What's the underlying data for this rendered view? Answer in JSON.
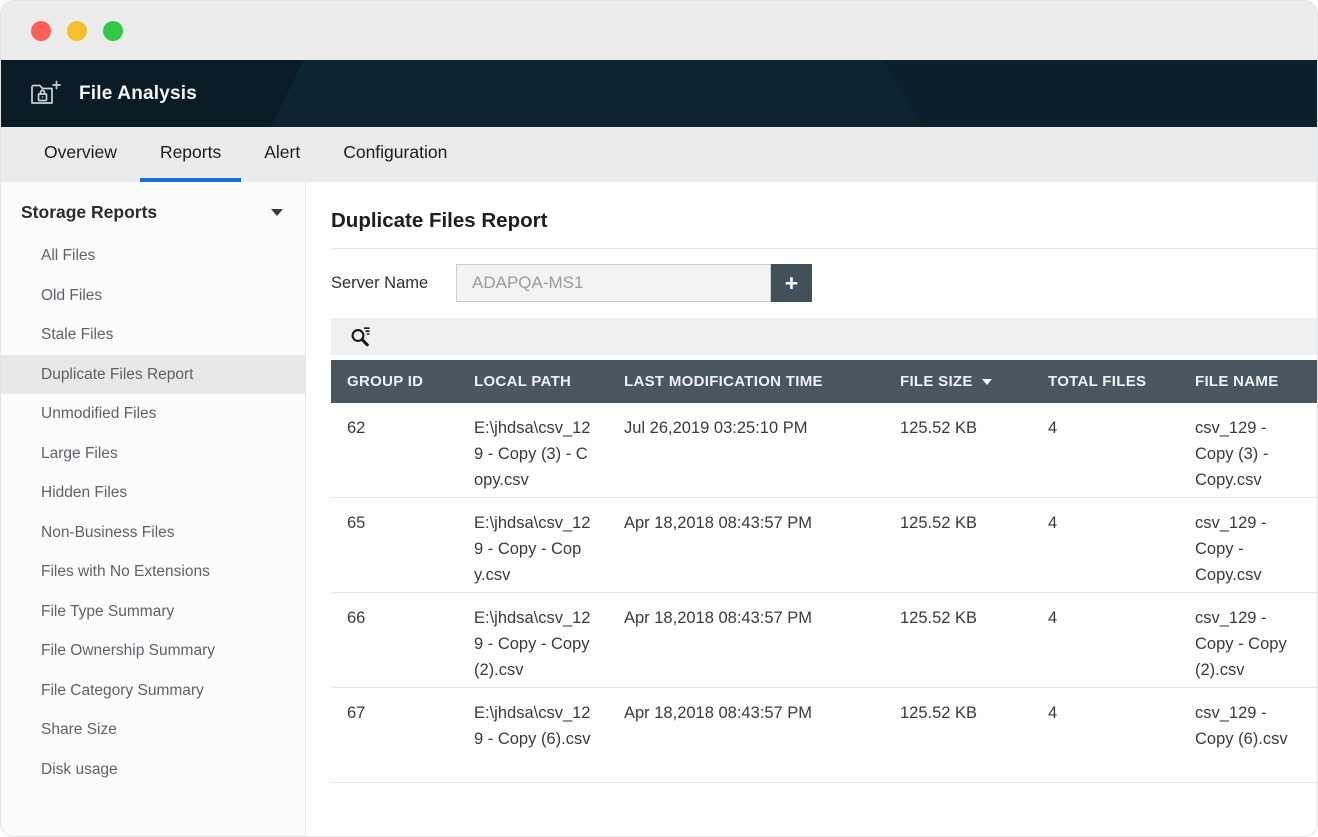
{
  "window": {
    "traffic_lights": [
      {
        "name": "close",
        "color": "#ff5f57"
      },
      {
        "name": "minimize",
        "color": "#f6bf2d"
      },
      {
        "name": "maximize",
        "color": "#33c748"
      }
    ]
  },
  "app_header": {
    "title": "File Analysis"
  },
  "tab_bar": {
    "tabs": [
      {
        "label": "Overview",
        "active": false
      },
      {
        "label": "Reports",
        "active": true
      },
      {
        "label": "Alert",
        "active": false
      },
      {
        "label": "Configuration",
        "active": false
      }
    ]
  },
  "sidebar": {
    "header": "Storage Reports",
    "selected": "Duplicate Files Report",
    "items": [
      "All Files",
      "Old Files",
      "Stale Files",
      "Duplicate Files Report",
      "Unmodified Files",
      "Large Files",
      "Hidden Files",
      "Non-Business Files",
      "Files with No Extensions",
      "File Type Summary",
      "File Ownership Summary",
      "File Category Summary",
      "Share Size",
      "Disk usage"
    ]
  },
  "main": {
    "title": "Duplicate Files Report",
    "server_field": {
      "label": "Server Name",
      "value": "ADAPQA-MS1",
      "add_button_label": "+"
    },
    "table": {
      "columns": [
        "GROUP ID",
        "LOCAL PATH",
        "LAST MODIFICATION TIME",
        "FILE SIZE",
        "TOTAL FILES",
        "FILE NAME"
      ],
      "sorted_column": "FILE SIZE",
      "sort_direction": "desc",
      "rows": [
        [
          "62",
          "E:\\jhdsa\\csv_129 - Copy (3) - Copy.csv",
          "Jul 26,2019 03:25:10 PM",
          "125.52 KB",
          "4",
          "csv_129 - Copy (3) - Copy.csv"
        ],
        [
          "65",
          "E:\\jhdsa\\csv_129 - Copy - Copy.csv",
          "Apr 18,2018 08:43:57 PM",
          "125.52 KB",
          "4",
          "csv_129 - Copy - Copy.csv"
        ],
        [
          "66",
          "E:\\jhdsa\\csv_129 - Copy - Copy (2).csv",
          "Apr 18,2018 08:43:57 PM",
          "125.52 KB",
          "4",
          "csv_129 - Copy - Copy (2).csv"
        ],
        [
          "67",
          "E:\\jhdsa\\csv_129 - Copy (6).csv",
          "Apr 18,2018 08:43:57 PM",
          "125.52 KB",
          "4",
          "csv_129 - Copy (6).csv"
        ]
      ]
    }
  },
  "colors": {
    "app_header_bg": "#0d2432",
    "accent_blue": "#1a6fd4",
    "table_header_bg": "#4a5660",
    "add_button_bg": "#42505a"
  }
}
